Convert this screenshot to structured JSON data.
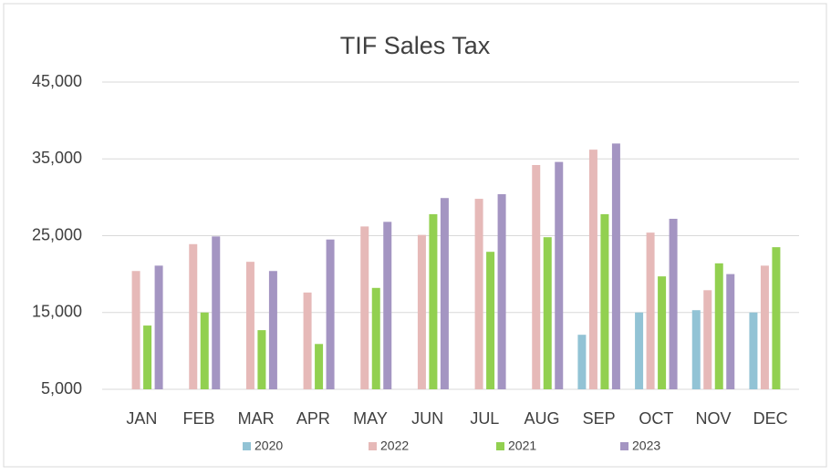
{
  "chart_data": {
    "type": "bar",
    "title": "TIF Sales Tax",
    "categories": [
      "JAN",
      "FEB",
      "MAR",
      "APR",
      "MAY",
      "JUN",
      "JUL",
      "AUG",
      "SEP",
      "OCT",
      "NOV",
      "DEC"
    ],
    "series": [
      {
        "name": "2020",
        "color": "#92c3d5",
        "values": [
          null,
          null,
          null,
          null,
          null,
          null,
          null,
          null,
          12100,
          15000,
          15300,
          15000
        ]
      },
      {
        "name": "2022",
        "color": "#e6b9b8",
        "values": [
          20400,
          23900,
          21600,
          17600,
          26200,
          25100,
          29800,
          34200,
          36200,
          25400,
          17900,
          21100
        ]
      },
      {
        "name": "2021",
        "color": "#92d050",
        "values": [
          13300,
          15000,
          12700,
          10900,
          18200,
          27800,
          22900,
          24800,
          27800,
          19700,
          21400,
          23500
        ]
      },
      {
        "name": "2023",
        "color": "#a495c2",
        "values": [
          21100,
          24900,
          20400,
          24500,
          26800,
          29900,
          30400,
          34600,
          37000,
          27200,
          20000,
          null
        ]
      }
    ],
    "ylim": [
      5000,
      45000
    ],
    "yticks": [
      {
        "value": 5000,
        "label": "5,000"
      },
      {
        "value": 15000,
        "label": "15,000"
      },
      {
        "value": 25000,
        "label": "25,000"
      },
      {
        "value": 35000,
        "label": "35,000"
      },
      {
        "value": 45000,
        "label": "45,000"
      }
    ],
    "grid": true,
    "legend": "bottom"
  }
}
